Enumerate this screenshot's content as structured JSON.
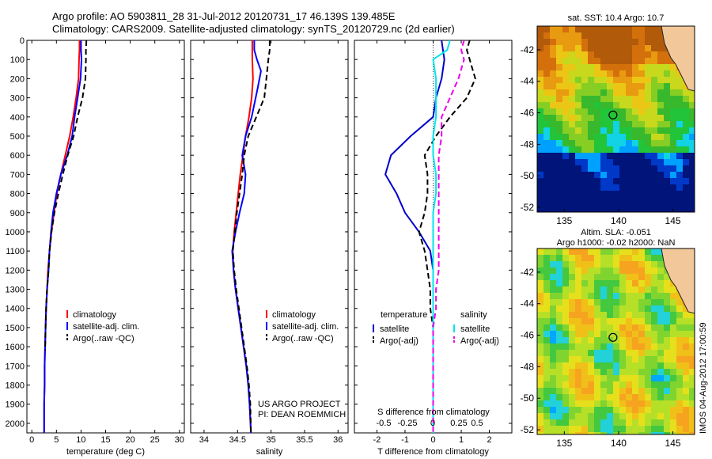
{
  "header": {
    "line1": "Argo profile: AO 5903811_28 31-Jul-2012 20120731_17 46.139S 139.485E",
    "line2": "Climatology: CARS2009. Satellite-adjusted climatology: synTS_20120729.nc (2d earlier)"
  },
  "side_stamp": "IMOS 04-Aug-2012 17:00:59",
  "chart_data": [
    {
      "id": "temperature",
      "type": "line",
      "xlabel": "temperature (deg C)",
      "ylabel": "",
      "xlim": [
        -1,
        31
      ],
      "ylim": [
        2050,
        0
      ],
      "xticks": [
        0,
        5,
        10,
        15,
        20,
        25,
        30
      ],
      "yticks": [
        0,
        100,
        200,
        300,
        400,
        500,
        600,
        700,
        800,
        900,
        1000,
        1100,
        1200,
        1300,
        1400,
        1500,
        1600,
        1700,
        1800,
        1900,
        2000
      ],
      "legend": [
        "climatology",
        "satellite-adj. clim.",
        "Argo(..raw -QC)"
      ],
      "series": [
        {
          "name": "climatology",
          "color": "#ff0000",
          "style": "solid",
          "x": [
            9.7,
            9.7,
            9.6,
            9.5,
            9.0,
            8.4,
            7.7,
            6.8,
            5.9,
            5.1,
            4.5,
            4.0,
            3.6,
            3.3,
            3.1,
            2.9,
            2.8,
            2.7,
            2.6,
            2.6,
            2.5,
            2.5
          ],
          "y": [
            0,
            50,
            100,
            200,
            300,
            400,
            500,
            600,
            700,
            800,
            900,
            1000,
            1100,
            1200,
            1300,
            1400,
            1500,
            1600,
            1700,
            1800,
            1900,
            2050
          ]
        },
        {
          "name": "satellite-adj. clim.",
          "color": "#0000ff",
          "style": "solid",
          "x": [
            10.0,
            10.0,
            10.1,
            9.9,
            9.3,
            8.7,
            8.2,
            7.2,
            5.9,
            5.0,
            4.3,
            3.9,
            3.6,
            3.4,
            3.1,
            2.9,
            2.8,
            2.7,
            2.6,
            2.6,
            2.5,
            2.5
          ],
          "y": [
            0,
            50,
            100,
            200,
            300,
            400,
            500,
            600,
            700,
            800,
            900,
            1000,
            1100,
            1200,
            1300,
            1400,
            1500,
            1600,
            1700,
            1800,
            1900,
            2050
          ]
        },
        {
          "name": "Argo(..raw -QC)",
          "color": "#000000",
          "style": "dashed",
          "x": [
            11.1,
            11.0,
            11.0,
            10.9,
            10.3,
            9.3,
            8.5,
            7.3,
            6.3,
            5.4,
            4.6,
            4.0,
            3.6,
            3.4,
            3.1,
            2.9,
            2.8,
            2.7
          ],
          "y": [
            0,
            50,
            100,
            200,
            300,
            400,
            500,
            600,
            700,
            800,
            900,
            1000,
            1100,
            1200,
            1300,
            1400,
            1500,
            1620
          ]
        }
      ]
    },
    {
      "id": "salinity",
      "type": "line",
      "xlabel": "salinity",
      "xlim": [
        33.8,
        36.15
      ],
      "ylim": [
        2050,
        0
      ],
      "xticks": [
        34,
        34.5,
        35,
        35.5,
        36
      ],
      "xticklabels": [
        "34",
        "34.5",
        "35",
        "35.5",
        "36"
      ],
      "yticks": [
        0,
        100,
        200,
        300,
        400,
        500,
        600,
        700,
        800,
        900,
        1000,
        1100,
        1200,
        1300,
        1400,
        1500,
        1600,
        1700,
        1800,
        1900,
        2000
      ],
      "legend": [
        "climatology",
        "satellite-adj. clim.",
        "Argo(..raw -QC)"
      ],
      "annotation": [
        "US ARGO PROJECT",
        "PI: DEAN ROEMMICH"
      ],
      "series": [
        {
          "name": "climatology",
          "color": "#ff0000",
          "style": "solid",
          "x": [
            34.72,
            34.72,
            34.72,
            34.73,
            34.71,
            34.67,
            34.62,
            34.58,
            34.54,
            34.51,
            34.48,
            34.45,
            34.43,
            34.44,
            34.47,
            34.51,
            34.55,
            34.59,
            34.63,
            34.66,
            34.68,
            34.7
          ],
          "y": [
            0,
            50,
            100,
            200,
            300,
            400,
            500,
            600,
            700,
            800,
            900,
            1000,
            1100,
            1200,
            1300,
            1400,
            1500,
            1600,
            1700,
            1800,
            1900,
            2050
          ]
        },
        {
          "name": "satellite-adj. clim.",
          "color": "#0000ff",
          "style": "solid",
          "x": [
            34.75,
            34.75,
            34.79,
            34.85,
            34.8,
            34.71,
            34.62,
            34.57,
            34.62,
            34.6,
            34.53,
            34.47,
            34.42,
            34.44,
            34.47,
            34.51,
            34.55,
            34.59,
            34.63,
            34.66,
            34.68,
            34.7
          ],
          "y": [
            0,
            50,
            100,
            160,
            250,
            400,
            500,
            600,
            700,
            800,
            900,
            1000,
            1100,
            1200,
            1300,
            1400,
            1500,
            1600,
            1700,
            1800,
            1900,
            2050
          ]
        },
        {
          "name": "Argo(..raw -QC)",
          "color": "#000000",
          "style": "dashed",
          "x": [
            34.98,
            34.98,
            34.96,
            34.93,
            34.9,
            34.78,
            34.66,
            34.6,
            34.57,
            34.53,
            34.49,
            34.46,
            34.43,
            34.45,
            34.48,
            34.52,
            34.56,
            34.6,
            34.64,
            34.67,
            34.69,
            34.7
          ],
          "y": [
            0,
            50,
            100,
            200,
            300,
            400,
            500,
            600,
            700,
            800,
            900,
            1000,
            1100,
            1200,
            1300,
            1400,
            1500,
            1600,
            1700,
            1800,
            1900,
            2050
          ]
        }
      ]
    },
    {
      "id": "difference",
      "type": "line",
      "xlabel": "T difference from climatology",
      "toplabel": "S difference from climatology",
      "xlim": [
        -2.8,
        2.8
      ],
      "ylim": [
        2050,
        0
      ],
      "xticks": [
        -2,
        -1,
        0,
        1,
        2
      ],
      "topticks": [
        "-0.5",
        "-0.25",
        "0",
        "0.25",
        "0.5"
      ],
      "yticks": [
        0,
        100,
        200,
        300,
        400,
        500,
        600,
        700,
        800,
        900,
        1000,
        1100,
        1200,
        1300,
        1400,
        1500,
        1600,
        1700,
        1800,
        1900,
        2000
      ],
      "legend_titles": [
        "temperature",
        "salinity"
      ],
      "legend": [
        "satellite",
        "Argo(-adj)",
        "satellite",
        "Argo(-adj)"
      ],
      "series": [
        {
          "name": "satellite",
          "group": "temperature",
          "color": "#0000cc",
          "style": "solid",
          "x": [
            0.3,
            0.35,
            0.4,
            0.3,
            0.1,
            0.0,
            -0.8,
            -1.5,
            -1.7,
            -1.3,
            -1.0,
            -0.5,
            -0.1,
            0.0,
            0.0,
            0.0,
            0.0,
            0.0,
            0.0,
            0.0,
            0.0,
            0.0
          ],
          "y": [
            0,
            50,
            100,
            200,
            300,
            400,
            500,
            600,
            700,
            800,
            900,
            1000,
            1100,
            1200,
            1300,
            1400,
            1500,
            1600,
            1700,
            1800,
            1900,
            2050
          ]
        },
        {
          "name": "Argo(-adj)",
          "group": "temperature",
          "color": "#000000",
          "style": "dashed",
          "x": [
            1.3,
            1.2,
            1.3,
            1.5,
            1.2,
            0.6,
            0.1,
            -0.3,
            -0.2,
            -0.2,
            -0.3,
            -0.5,
            -0.3,
            -0.2,
            -0.1,
            -0.1,
            0.0,
            0.0,
            0.0,
            0.0,
            0.0,
            0.0
          ],
          "y": [
            0,
            50,
            100,
            200,
            300,
            400,
            500,
            600,
            700,
            800,
            900,
            1000,
            1100,
            1200,
            1300,
            1400,
            1500,
            1600,
            1700,
            1800,
            1900,
            2050
          ]
        },
        {
          "name": "satellite",
          "group": "salinity",
          "color": "#00e5ee",
          "style": "solid",
          "x": [
            0.6,
            0.5,
            0.0,
            0.1,
            0.1,
            0.1,
            0.0,
            0.0,
            0.1,
            0.1,
            0.0,
            0.0,
            0.0,
            0.0,
            0.0,
            0.0,
            0.0,
            0.0,
            0.0,
            0.0,
            0.0,
            0.0
          ],
          "y": [
            0,
            50,
            100,
            200,
            300,
            400,
            500,
            600,
            700,
            800,
            900,
            1000,
            1100,
            1200,
            1300,
            1400,
            1500,
            1600,
            1700,
            1800,
            1900,
            2050
          ]
        },
        {
          "name": "Argo(-adj)",
          "group": "salinity",
          "color": "#ee00ee",
          "style": "dashed",
          "x": [
            1.1,
            1.0,
            1.1,
            0.9,
            0.6,
            0.3,
            0.3,
            0.2,
            0.2,
            0.2,
            0.2,
            0.2,
            0.2,
            0.2,
            0.1,
            0.1,
            0.0,
            0.0,
            0.0,
            0.0,
            0.0,
            0.0
          ],
          "y": [
            0,
            50,
            100,
            200,
            300,
            400,
            500,
            600,
            700,
            800,
            900,
            1000,
            1100,
            1200,
            1300,
            1400,
            1500,
            1600,
            1700,
            1800,
            1900,
            2050
          ]
        }
      ]
    },
    {
      "id": "sst-map",
      "type": "heatmap",
      "title": "sat. SST: 10.4  Argo: 10.7",
      "xlim": [
        132.5,
        147
      ],
      "ylim": [
        -52.3,
        -40.5
      ],
      "xticks": [
        135,
        140,
        145
      ],
      "yticks": [
        -42,
        -44,
        -46,
        -48,
        -50,
        -52
      ],
      "marker": {
        "lon": 139.485,
        "lat": -46.139
      }
    },
    {
      "id": "sla-map",
      "type": "heatmap",
      "title": "Altim. SLA: -0.051",
      "subtitle": "Argo h1000: -0.02  h2000: NaN",
      "xlim": [
        132.5,
        147
      ],
      "ylim": [
        -52.3,
        -40.5
      ],
      "xticks": [
        135,
        140,
        145
      ],
      "yticks": [
        -42,
        -44,
        -46,
        -48,
        -50,
        -52
      ],
      "marker": {
        "lon": 139.485,
        "lat": -46.139
      }
    }
  ]
}
